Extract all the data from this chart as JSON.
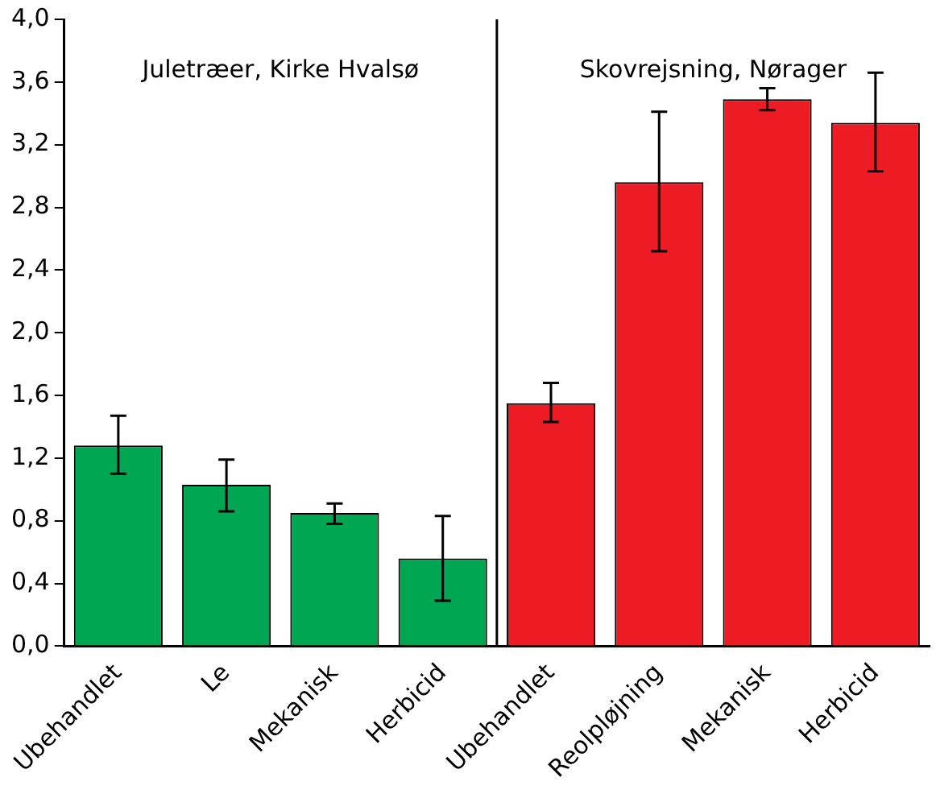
{
  "chart_data": {
    "type": "bar",
    "categories": [
      "Ubehandlet",
      "Le",
      "Mekanisk",
      "Herbicid",
      "Ubehandlet",
      "Reolpløjning",
      "Mekanisk",
      "Herbicid"
    ],
    "values": [
      1.28,
      1.03,
      0.85,
      0.56,
      1.55,
      2.96,
      3.49,
      3.34
    ],
    "colors": [
      "#00a651",
      "#00a651",
      "#00a651",
      "#00a651",
      "#ed1c24",
      "#ed1c24",
      "#ed1c24",
      "#ed1c24"
    ],
    "errors": [
      [
        1.1,
        1.47
      ],
      [
        0.86,
        1.19
      ],
      [
        0.78,
        0.91
      ],
      [
        0.29,
        0.83
      ],
      [
        1.43,
        1.68
      ],
      [
        2.52,
        3.41
      ],
      [
        3.42,
        3.56
      ],
      [
        3.03,
        3.66
      ]
    ],
    "ylim": [
      0,
      4
    ],
    "yticks": [
      {
        "value": 0,
        "label": "0,0"
      },
      {
        "value": 0.4,
        "label": "0,4"
      },
      {
        "value": 0.8,
        "label": "0,8"
      },
      {
        "value": 1.2,
        "label": "1,2"
      },
      {
        "value": 1.6,
        "label": "1,6"
      },
      {
        "value": 2.0,
        "label": "2,0"
      },
      {
        "value": 2.4,
        "label": "2,4"
      },
      {
        "value": 2.8,
        "label": "2,8"
      },
      {
        "value": 3.2,
        "label": "3,2"
      },
      {
        "value": 3.6,
        "label": "3,6"
      },
      {
        "value": 4.0,
        "label": "4,0"
      }
    ],
    "annotations": [
      "Juletræer, Kirke Hvalsø",
      "Skovrejsning, Nørager"
    ],
    "grid": false,
    "legend": false
  }
}
